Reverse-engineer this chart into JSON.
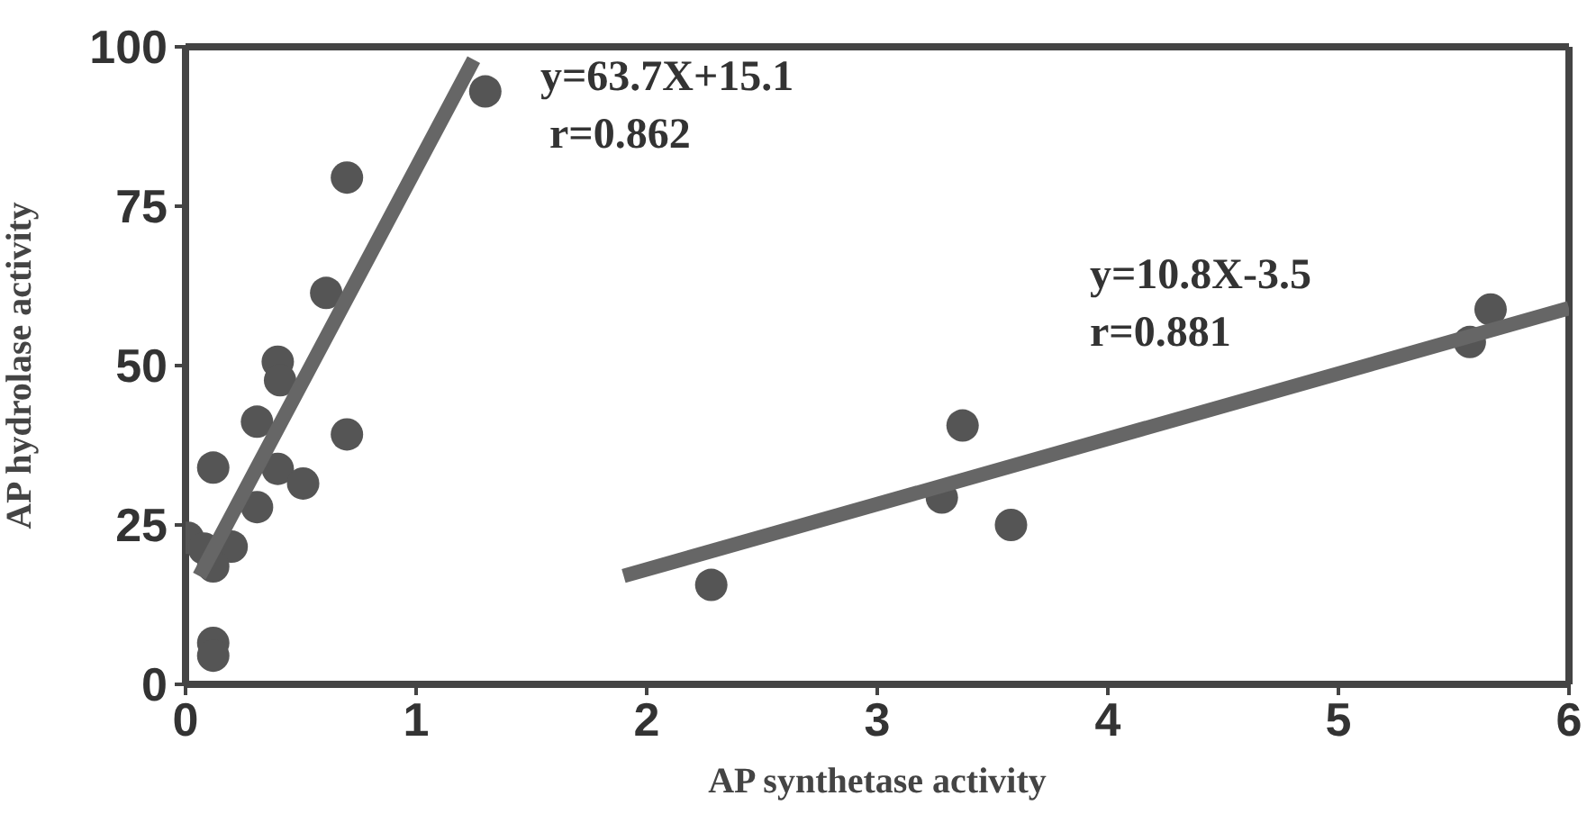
{
  "chart_data": {
    "type": "scatter",
    "xlabel": "AP synthetase activity",
    "ylabel": "AP hydrolase activity",
    "xlim": [
      0,
      6
    ],
    "xticks": [
      0,
      1,
      2,
      3,
      4,
      5,
      6
    ],
    "ylim": [
      0,
      100
    ],
    "yticks": [
      0,
      25,
      50,
      75,
      100
    ],
    "grid": false,
    "marker": "circle",
    "series": [
      {
        "color": "#555555",
        "x": [
          1.3,
          0.7,
          0.61,
          0.4,
          0.41,
          0.31,
          0.7,
          0.12,
          0.4,
          0.51,
          0.31,
          0.01,
          0.2,
          0.12,
          0.08,
          0.12,
          0.12,
          2.28,
          3.28,
          3.37,
          3.58,
          5.57,
          5.66
        ],
        "values": [
          93,
          79.5,
          61.4,
          50.6,
          47.7,
          41.2,
          39.2,
          34,
          33.8,
          31.5,
          27.8,
          23,
          21.6,
          18.5,
          21.3,
          6.5,
          4.5,
          15.6,
          29.3,
          40.6,
          25,
          53.7,
          58.8
        ]
      },
      {
        "type": "line",
        "color": "#666666",
        "marker": "none",
        "x": [
          0.06,
          1.25
        ],
        "values": [
          17,
          98
        ]
      },
      {
        "type": "line",
        "color": "#666666",
        "marker": "none",
        "x": [
          1.9,
          6
        ],
        "values": [
          17,
          59
        ]
      }
    ],
    "annotations": [
      "y=63.7X+15.1",
      "r=0.862",
      "y=10.8X-3.5",
      "r=0.881"
    ]
  }
}
